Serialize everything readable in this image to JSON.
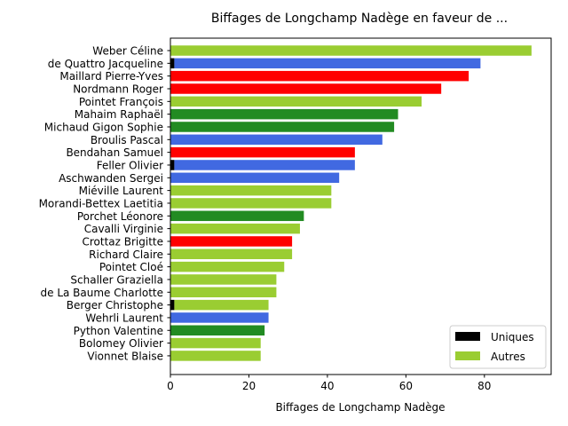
{
  "chart_data": {
    "type": "bar",
    "orientation": "horizontal",
    "stacked": true,
    "title": "Biffages de Longchamp Nadège en faveur de ...",
    "xlabel": "Biffages de Longchamp Nadège",
    "ylabel": "",
    "xlim": [
      0,
      97
    ],
    "xticks": [
      0,
      20,
      40,
      60,
      80
    ],
    "grid": false,
    "legend_position": "lower right",
    "categories": [
      "Weber Céline",
      "de Quattro Jacqueline",
      "Maillard Pierre-Yves",
      "Nordmann Roger",
      "Pointet François",
      "Mahaim Raphaël",
      "Michaud Gigon Sophie",
      "Broulis Pascal",
      "Bendahan Samuel",
      "Feller Olivier",
      "Aschwanden Sergei",
      "Miéville Laurent",
      "Morandi-Bettex Laetitia",
      "Porchet Léonore",
      "Cavalli Virginie",
      "Crottaz Brigitte",
      "Richard Claire",
      "Pointet Cloé",
      "Schaller Graziella",
      "de La Baume Charlotte",
      "Berger Christophe",
      "Wehrli Laurent",
      "Python Valentine",
      "Bolomey Olivier",
      "Vionnet Blaise"
    ],
    "bar_colors": [
      "#9acd32",
      "#4169e1",
      "#ff0000",
      "#ff0000",
      "#9acd32",
      "#228b22",
      "#228b22",
      "#4169e1",
      "#ff0000",
      "#4169e1",
      "#4169e1",
      "#9acd32",
      "#9acd32",
      "#228b22",
      "#9acd32",
      "#ff0000",
      "#9acd32",
      "#9acd32",
      "#9acd32",
      "#9acd32",
      "#9acd32",
      "#4169e1",
      "#228b22",
      "#9acd32",
      "#9acd32"
    ],
    "series": [
      {
        "name": "Uniques",
        "color": "#000000",
        "values": [
          0,
          1,
          0,
          0,
          0,
          0,
          0,
          0,
          0,
          1,
          0,
          0,
          0,
          0,
          0,
          0,
          0,
          0,
          0,
          0,
          1,
          0,
          0,
          0,
          0
        ]
      },
      {
        "name": "Autres",
        "color": "#9acd32",
        "values": [
          92,
          78,
          76,
          69,
          64,
          58,
          57,
          54,
          47,
          46,
          43,
          41,
          41,
          34,
          33,
          31,
          31,
          29,
          27,
          27,
          24,
          25,
          24,
          23,
          23
        ]
      }
    ]
  }
}
